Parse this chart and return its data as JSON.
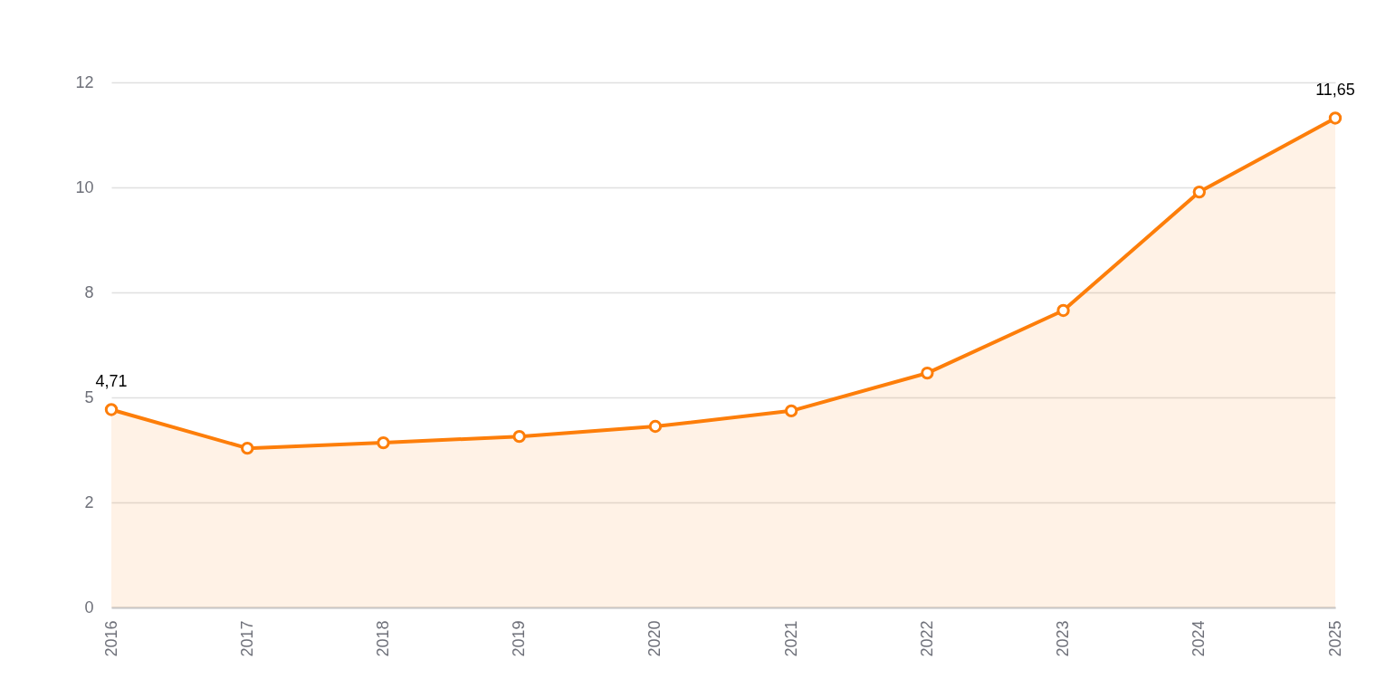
{
  "chart_data": {
    "type": "area",
    "categories": [
      "2016",
      "2017",
      "2018",
      "2019",
      "2020",
      "2021",
      "2022",
      "2023",
      "2024",
      "2025"
    ],
    "series": [
      {
        "color": "#fd7e0a",
        "values": [
          4.71,
          3.79,
          3.92,
          4.07,
          4.31,
          4.68,
          5.58,
          7.07,
          9.89,
          11.65
        ],
        "value_labels": [
          "4,71",
          null,
          null,
          null,
          null,
          null,
          null,
          null,
          null,
          "11,65"
        ]
      }
    ],
    "ylim": [
      0,
      12.5
    ],
    "yticks": [
      0,
      {
        "value": 2.5,
        "label": "2"
      },
      {
        "value": 5,
        "label": "5"
      },
      {
        "value": 7.5,
        "label": "8"
      },
      {
        "value": 10,
        "label": "10"
      },
      {
        "value": 12.5,
        "label": "12"
      }
    ],
    "grid": "y",
    "marker": "circle",
    "line_style": "solid"
  }
}
